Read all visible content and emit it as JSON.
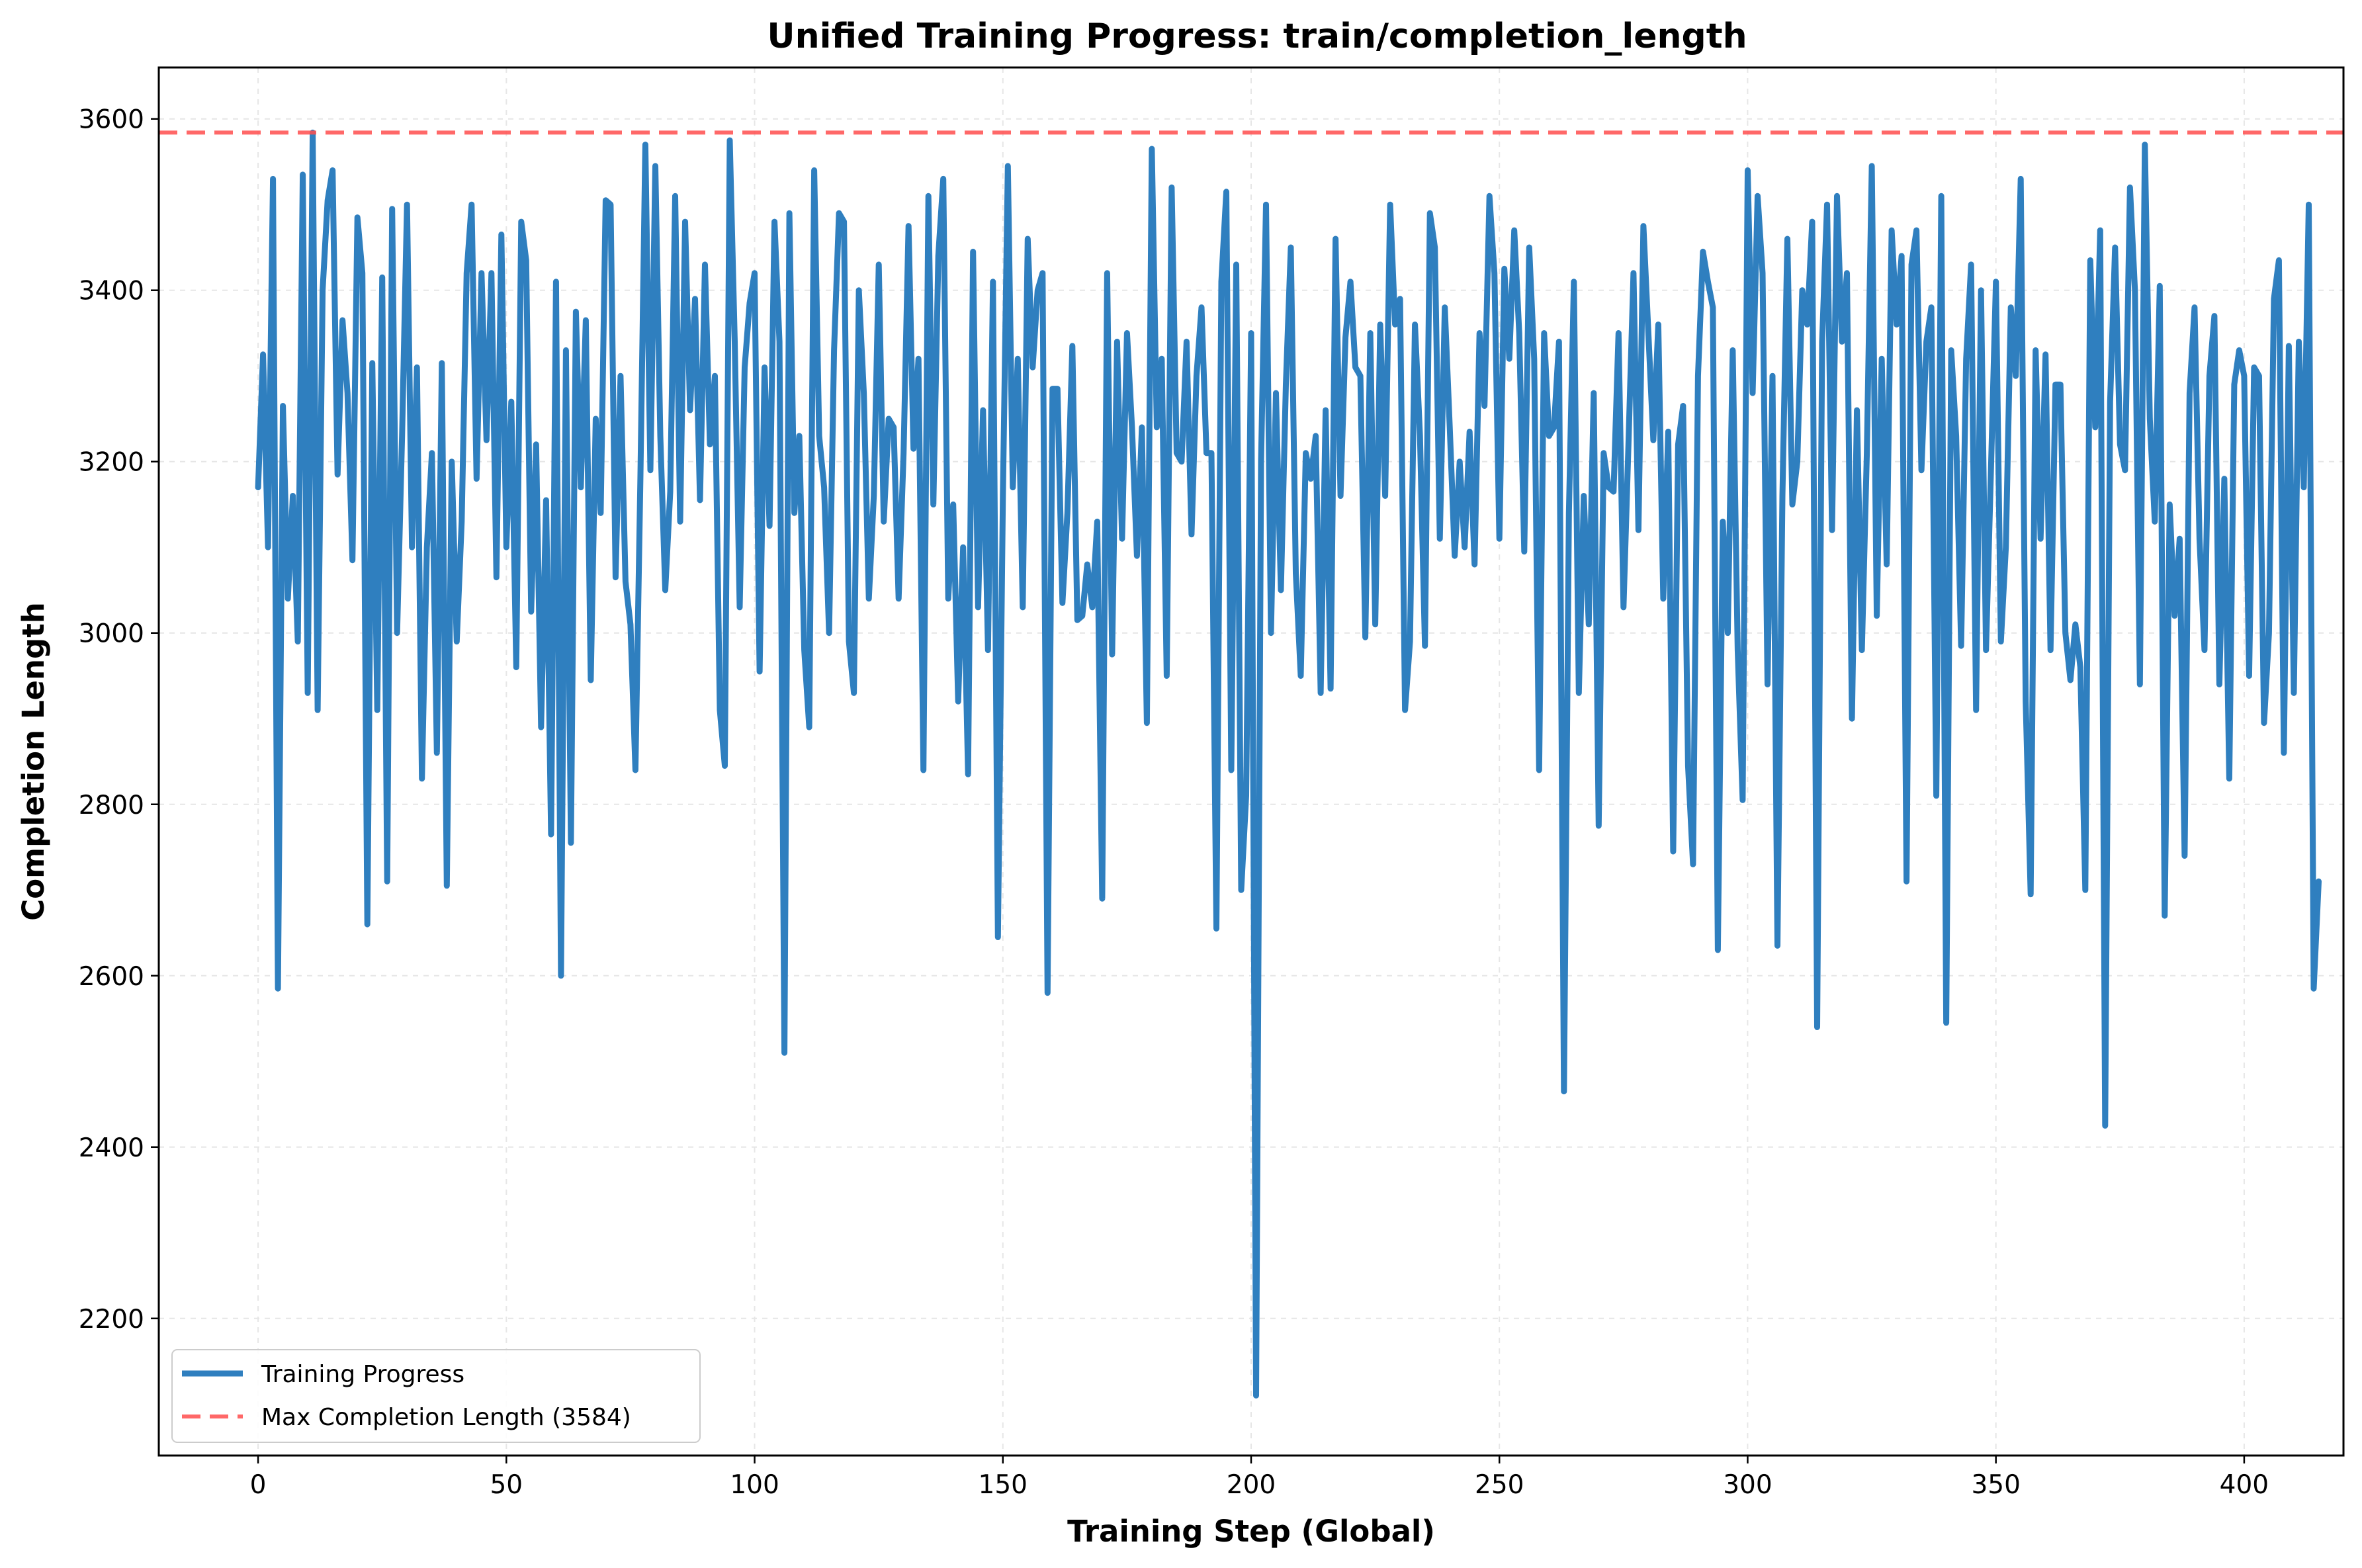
{
  "chart_data": {
    "type": "line",
    "title": "Unified Training Progress: train/completion_length",
    "xlabel": "Training Step (Global)",
    "ylabel": "Completion Length",
    "xlim": [
      -20,
      420
    ],
    "ylim": [
      2040,
      3660
    ],
    "xticks": [
      0,
      50,
      100,
      150,
      200,
      250,
      300,
      350,
      400
    ],
    "yticks": [
      2200,
      2400,
      2600,
      2800,
      3000,
      3200,
      3400,
      3600
    ],
    "grid": true,
    "legend": {
      "placement": "lower-left"
    },
    "series": [
      {
        "name": "Training Progress",
        "color": "#2f7fbf",
        "style": "solid",
        "x_start": 0,
        "x_step": 1,
        "values": [
          3170,
          3325,
          3100,
          3530,
          2585,
          3265,
          3040,
          3160,
          2990,
          3535,
          2930,
          3584,
          2910,
          3400,
          3505,
          3540,
          3185,
          3365,
          3280,
          3085,
          3485,
          3420,
          2660,
          3315,
          2910,
          3415,
          2710,
          3495,
          3000,
          3230,
          3500,
          3100,
          3310,
          2830,
          3100,
          3210,
          2860,
          3315,
          2705,
          3200,
          2990,
          3130,
          3420,
          3500,
          3180,
          3420,
          3225,
          3420,
          3065,
          3465,
          3100,
          3270,
          2960,
          3480,
          3435,
          3025,
          3220,
          2890,
          3155,
          2765,
          3410,
          2600,
          3330,
          2755,
          3375,
          3170,
          3365,
          2945,
          3250,
          3140,
          3505,
          3500,
          3065,
          3300,
          3060,
          3010,
          2840,
          3180,
          3570,
          3190,
          3545,
          3230,
          3050,
          3165,
          3510,
          3130,
          3480,
          3260,
          3390,
          3155,
          3430,
          3220,
          3300,
          2910,
          2845,
          3575,
          3340,
          3030,
          3310,
          3385,
          3420,
          2955,
          3310,
          3125,
          3480,
          3340,
          2510,
          3490,
          3140,
          3230,
          2980,
          2890,
          3540,
          3230,
          3170,
          3000,
          3330,
          3490,
          3480,
          2990,
          2930,
          3400,
          3280,
          3040,
          3160,
          3430,
          3130,
          3250,
          3240,
          3040,
          3210,
          3475,
          3215,
          3320,
          2840,
          3510,
          3150,
          3440,
          3530,
          3040,
          3150,
          2920,
          3100,
          2835,
          3445,
          3030,
          3260,
          2980,
          3410,
          2645,
          3160,
          3545,
          3170,
          3320,
          3030,
          3460,
          3310,
          3400,
          3420,
          2580,
          3285,
          3285,
          3035,
          3140,
          3335,
          3015,
          3020,
          3080,
          3030,
          3130,
          2690,
          3420,
          2975,
          3340,
          3110,
          3350,
          3240,
          3090,
          3240,
          2895,
          3565,
          3240,
          3320,
          2950,
          3520,
          3210,
          3200,
          3340,
          3115,
          3300,
          3380,
          3210,
          3210,
          2655,
          3410,
          3515,
          2840,
          3430,
          2700,
          2810,
          3350,
          2110,
          3200,
          3500,
          3000,
          3280,
          3050,
          3290,
          3450,
          3070,
          2950,
          3210,
          3180,
          3230,
          2930,
          3260,
          2935,
          3460,
          3160,
          3345,
          3410,
          3310,
          3300,
          2995,
          3350,
          3010,
          3360,
          3160,
          3500,
          3360,
          3390,
          2910,
          2990,
          3360,
          3230,
          2985,
          3490,
          3450,
          3110,
          3380,
          3240,
          3090,
          3200,
          3100,
          3235,
          3080,
          3350,
          3265,
          3510,
          3420,
          3110,
          3425,
          3320,
          3470,
          3350,
          3095,
          3450,
          3320,
          2840,
          3350,
          3230,
          3240,
          3340,
          2465,
          3140,
          3410,
          2930,
          3160,
          3010,
          3280,
          2775,
          3210,
          3170,
          3165,
          3350,
          3030,
          3220,
          3420,
          3120,
          3475,
          3350,
          3225,
          3360,
          3040,
          3235,
          2745,
          3220,
          3265,
          2845,
          2730,
          3300,
          3445,
          3410,
          3380,
          2630,
          3130,
          3000,
          3330,
          2980,
          2805,
          3540,
          3280,
          3510,
          3420,
          2940,
          3300,
          2635,
          3160,
          3460,
          3150,
          3200,
          3400,
          3360,
          3480,
          2540,
          3340,
          3500,
          3120,
          3510,
          3340,
          3420,
          2900,
          3260,
          2980,
          3210,
          3545,
          3020,
          3320,
          3080,
          3470,
          3360,
          3440,
          2710,
          3430,
          3470,
          3190,
          3340,
          3380,
          2810,
          3510,
          2545,
          3330,
          3230,
          2985,
          3320,
          3430,
          2910,
          3400,
          2980,
          3190,
          3410,
          2990,
          3100,
          3380,
          3300,
          3530,
          2920,
          2695,
          3330,
          3110,
          3325,
          2980,
          3290,
          3290,
          3000,
          2945,
          3010,
          2960,
          2700,
          3435,
          3240,
          3470,
          2425,
          3270,
          3450,
          3220,
          3190,
          3520,
          3400,
          2940,
          3570,
          3250,
          3130,
          3405,
          2670,
          3150,
          3020,
          3110,
          2740,
          3280,
          3380,
          3110,
          2980,
          3300,
          3370,
          2940,
          3180,
          2830,
          3290,
          3330,
          3300,
          2950,
          3310,
          3300,
          2895,
          3000,
          3390,
          3435,
          2860,
          3335,
          2930,
          3340,
          3170,
          3500,
          2585,
          2710
        ]
      },
      {
        "name": "Max Completion Length (3584)",
        "color": "#ff4d4d",
        "style": "dashed",
        "y": 3584
      }
    ]
  }
}
